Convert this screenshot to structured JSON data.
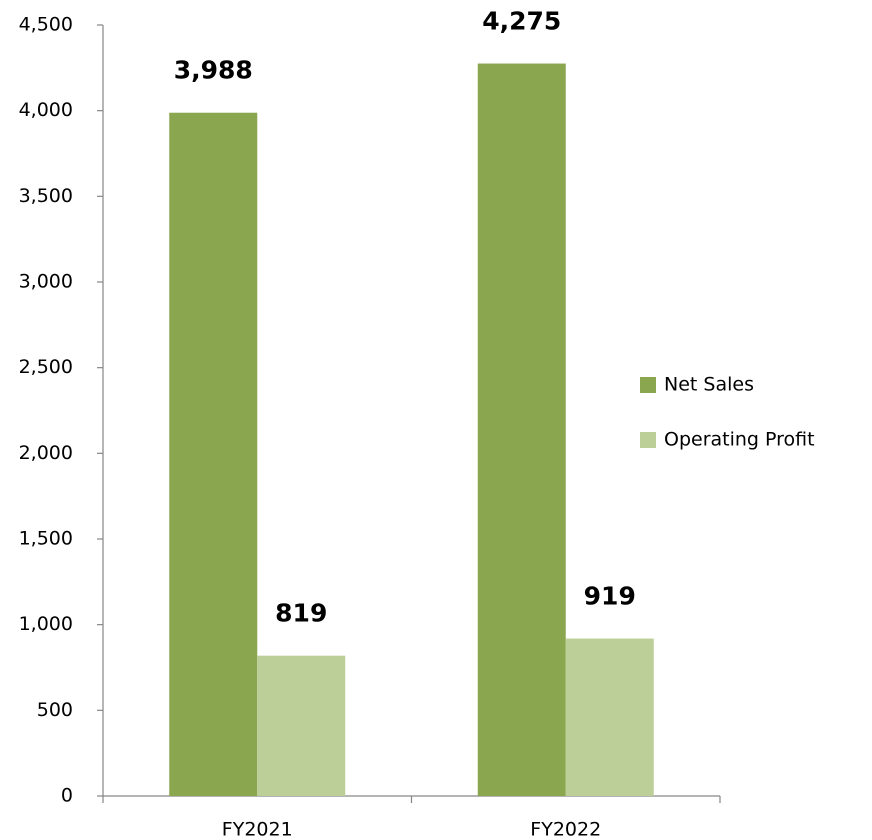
{
  "chart_data": {
    "type": "bar",
    "categories": [
      "FY2021",
      "FY2022"
    ],
    "series": [
      {
        "name": "Net Sales",
        "color": "#8aa64e",
        "values": [
          3988,
          4275
        ],
        "value_labels": [
          "3,988",
          "4,275"
        ]
      },
      {
        "name": "Operating Profit",
        "color": "#bccf98",
        "values": [
          819,
          919
        ],
        "value_labels": [
          "819",
          "919"
        ]
      }
    ],
    "ylim": [
      0,
      4500
    ],
    "yticks": [
      0,
      500,
      {
        "value": 1000,
        "label": "1,000"
      },
      {
        "value": 1500,
        "label": "1,500"
      },
      {
        "value": 2000,
        "label": "2,000"
      },
      {
        "value": 2500,
        "label": "2,500"
      },
      {
        "value": 3000,
        "label": "3,000"
      },
      {
        "value": 3500,
        "label": "3,500"
      },
      {
        "value": 4000,
        "label": "4,000"
      },
      {
        "value": 4500,
        "label": "4,500"
      }
    ],
    "legend": "right",
    "grid": false
  }
}
